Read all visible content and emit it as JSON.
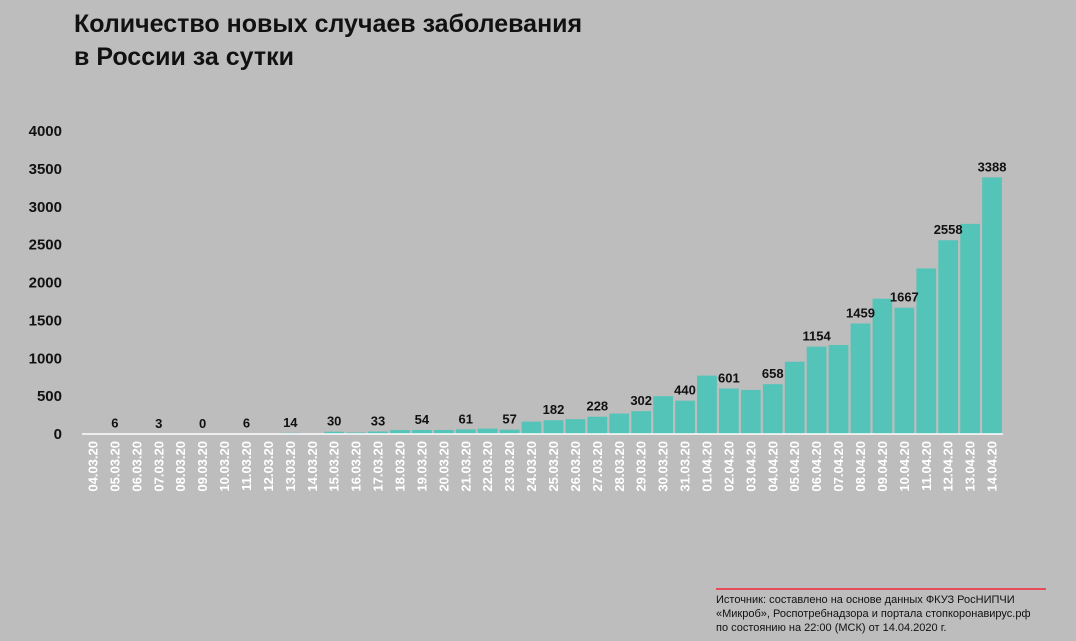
{
  "title": {
    "line1": "Количество новых случаев заболевания",
    "line2": "в России за сутки"
  },
  "chart_data": {
    "type": "bar",
    "title": "Количество новых случаев заболевания в России за сутки",
    "ylim": [
      0,
      4000
    ],
    "yticks": [
      0,
      500,
      1000,
      1500,
      2000,
      2500,
      3000,
      3500,
      4000
    ],
    "grid": false,
    "bar_color": "#55c4b8",
    "categories": [
      "04.03.20",
      "05.03.20",
      "06.03.20",
      "07.03.20",
      "08.03.20",
      "09.03.20",
      "10.03.20",
      "11.03.20",
      "12.03.20",
      "13.03.20",
      "14.03.20",
      "15.03.20",
      "16.03.20",
      "17.03.20",
      "18.03.20",
      "19.03.20",
      "20.03.20",
      "21.03.20",
      "22.03.20",
      "23.03.20",
      "24.03.20",
      "25.03.20",
      "26.03.20",
      "27.03.20",
      "28.03.20",
      "29.03.20",
      "30.03.20",
      "31.03.20",
      "01.04.20",
      "02.04.20",
      "03.04.20",
      "04.04.20",
      "05.04.20",
      "06.04.20",
      "07.04.20",
      "08.04.20",
      "09.04.20",
      "10.04.20",
      "11.04.20",
      "12.04.20",
      "13.04.20",
      "14.04.20"
    ],
    "values": [
      3,
      6,
      0,
      3,
      0,
      0,
      3,
      6,
      4,
      14,
      4,
      30,
      20,
      33,
      52,
      54,
      53,
      61,
      71,
      57,
      163,
      182,
      196,
      228,
      270,
      302,
      500,
      440,
      771,
      601,
      582,
      658,
      954,
      1154,
      1175,
      1459,
      1786,
      1667,
      2186,
      2558,
      2774,
      3388
    ],
    "data_labels": [
      {
        "index": 1,
        "text": "6"
      },
      {
        "index": 3,
        "text": "3"
      },
      {
        "index": 5,
        "text": "0"
      },
      {
        "index": 7,
        "text": "6"
      },
      {
        "index": 9,
        "text": "14"
      },
      {
        "index": 11,
        "text": "30"
      },
      {
        "index": 13,
        "text": "33"
      },
      {
        "index": 15,
        "text": "54"
      },
      {
        "index": 17,
        "text": "61"
      },
      {
        "index": 19,
        "text": "57"
      },
      {
        "index": 21,
        "text": "182"
      },
      {
        "index": 23,
        "text": "228"
      },
      {
        "index": 25,
        "text": "302"
      },
      {
        "index": 27,
        "text": "440"
      },
      {
        "index": 29,
        "text": "601"
      },
      {
        "index": 31,
        "text": "658"
      },
      {
        "index": 33,
        "text": "1154"
      },
      {
        "index": 35,
        "text": "1459"
      },
      {
        "index": 37,
        "text": "1667"
      },
      {
        "index": 39,
        "text": "2558"
      },
      {
        "index": 41,
        "text": "3388"
      }
    ]
  },
  "source": {
    "line1": "Источник: составлено на основе данных ФКУЗ РосНИПЧИ",
    "line2": "«Микроб», Роспотребнадзора и портала стопкоронавирус.рф",
    "line3": "по состоянию на 22:00 (МСК) от 14.04.2020 г."
  }
}
